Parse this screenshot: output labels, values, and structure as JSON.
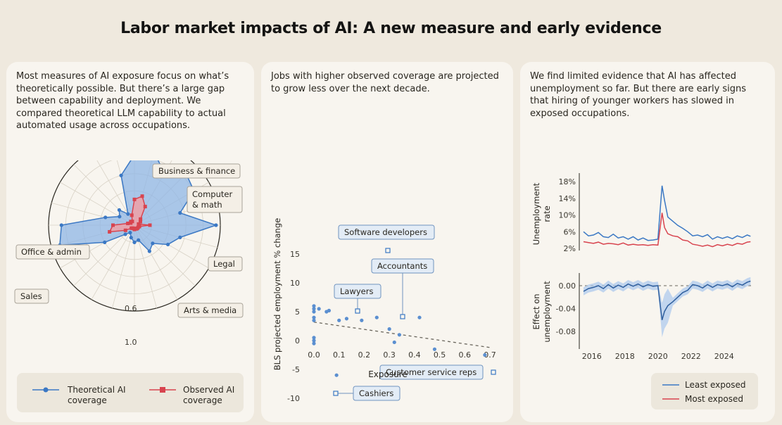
{
  "header": {
    "title": "Labor market impacts of AI: A new measure and early evidence"
  },
  "panel1": {
    "text": "Most measures of AI exposure focus on what’s theoretically possible. But there’s a large gap between capability and deployment. We compared theoretical LLM capability to actual automated usage across occupations.",
    "legend": {
      "theoretical": "Theoretical AI coverage",
      "observed": "Observed AI coverage"
    },
    "legend_lines": {
      "theoretical_1": "Theoretical AI",
      "theoretical_2": "coverage",
      "observed_1": "Observed AI",
      "observed_2": "coverage"
    }
  },
  "panel2": {
    "text": "Jobs with higher observed coverage are projected to grow less over the next decade."
  },
  "panel3": {
    "text": "We find limited evidence that AI has affected unemployment so far. But there are early signs that hiring of younger workers has slowed in exposed occupations.",
    "legend": {
      "least": "Least exposed",
      "most": "Most exposed"
    }
  },
  "colors": {
    "blue": "#3b78c4",
    "blue_fill": "#8fb6e6",
    "red": "#d8444f",
    "red_fill": "#f0a0a6",
    "panel": "#f8f5ef",
    "bg": "#efe9de"
  },
  "chart_data": [
    {
      "type": "radar",
      "title": "",
      "axes_rings": [
        "0.6",
        "1.0"
      ],
      "category_labels": [
        "Business & finance",
        "Computer & math",
        "Legal",
        "Arts & media",
        "Office & admin",
        "Sales"
      ],
      "series": [
        {
          "name": "Theoretical AI coverage",
          "values": [
            0.82,
            0.88,
            0.7,
            0.85,
            0.8,
            0.55,
            0.95,
            0.55,
            0.45,
            0.3,
            0.35,
            0.18,
            0.2,
            0.15,
            0.1,
            0.15,
            0.4,
            0.9,
            0.85,
            0.35,
            0.2,
            0.25,
            0.15,
            0.6
          ]
        },
        {
          "name": "Observed AI coverage",
          "values": [
            0.3,
            0.35,
            0.25,
            0.1,
            0.08,
            0.05,
            0.18,
            0.06,
            0.05,
            0.05,
            0.05,
            0.04,
            0.05,
            0.04,
            0.04,
            0.05,
            0.12,
            0.3,
            0.25,
            0.08,
            0.05,
            0.06,
            0.05,
            0.12
          ]
        }
      ]
    },
    {
      "type": "scatter",
      "title": "",
      "xlabel": "Exposure",
      "ylabel": "BLS projected employment % change",
      "xlim": [
        0,
        0.7
      ],
      "ylim": [
        -10,
        15
      ],
      "xticks": [
        "0.0",
        "0.1",
        "0.2",
        "0.3",
        "0.4",
        "0.5",
        "0.6",
        "0.7"
      ],
      "yticks": [
        "15",
        "10",
        "5",
        "0",
        "-5",
        "-10"
      ],
      "points": [
        [
          0.0,
          6.0
        ],
        [
          0.0,
          5.5
        ],
        [
          0.0,
          5.0
        ],
        [
          0.0,
          4.0
        ],
        [
          0.0,
          3.5
        ],
        [
          0.0,
          0.5
        ],
        [
          0.0,
          0.0
        ],
        [
          0.0,
          -0.5
        ],
        [
          0.02,
          5.5
        ],
        [
          0.05,
          5.0
        ],
        [
          0.06,
          5.2
        ],
        [
          0.1,
          3.5
        ],
        [
          0.13,
          3.8
        ],
        [
          0.19,
          3.5
        ],
        [
          0.25,
          4.0
        ],
        [
          0.3,
          2.0
        ],
        [
          0.34,
          1.0
        ],
        [
          0.32,
          -0.3
        ],
        [
          0.42,
          4.0
        ],
        [
          0.48,
          -1.5
        ],
        [
          0.09,
          -6.0
        ],
        [
          0.68,
          -2.5
        ]
      ],
      "labeled_points": [
        {
          "label": "Software developers",
          "x": 0.3,
          "y": 16.0
        },
        {
          "label": "Accountants",
          "x": 0.36,
          "y": 4.2
        },
        {
          "label": "Lawyers",
          "x": 0.17,
          "y": 4.2
        },
        {
          "label": "Customer service reps",
          "x": 0.7,
          "y": -5.5
        },
        {
          "label": "Cashiers",
          "x": 0.09,
          "y": -9.2
        }
      ],
      "trend": {
        "x": [
          0,
          0.7
        ],
        "y": [
          3.2,
          -1.2
        ]
      }
    },
    {
      "type": "line",
      "title": "",
      "ylabel": "Unemployment rate",
      "yticks": [
        "18%",
        "14%",
        "10%",
        "6%",
        "2%"
      ],
      "ylim": [
        2,
        18
      ],
      "x": [
        2015.5,
        2015.8,
        2016.1,
        2016.4,
        2016.7,
        2017.0,
        2017.3,
        2017.6,
        2017.9,
        2018.2,
        2018.5,
        2018.8,
        2019.1,
        2019.4,
        2019.7,
        2020.0,
        2020.25,
        2020.4,
        2020.6,
        2020.9,
        2021.2,
        2021.5,
        2021.8,
        2022.1,
        2022.4,
        2022.7,
        2023.0,
        2023.3,
        2023.6,
        2023.9,
        2024.2,
        2024.5,
        2024.8,
        2025.1,
        2025.4,
        2025.6
      ],
      "series": [
        {
          "name": "Least exposed",
          "values": [
            6.0,
            5.0,
            5.2,
            5.8,
            4.8,
            4.6,
            5.4,
            4.5,
            4.8,
            4.2,
            4.8,
            4.0,
            4.5,
            3.9,
            4.0,
            4.2,
            17.0,
            13.5,
            9.5,
            8.5,
            7.5,
            6.8,
            6.0,
            5.0,
            5.2,
            4.8,
            5.3,
            4.2,
            4.8,
            4.4,
            4.8,
            4.3,
            5.0,
            4.6,
            5.2,
            4.9
          ]
        },
        {
          "name": "Most exposed",
          "values": [
            3.6,
            3.4,
            3.2,
            3.5,
            3.0,
            3.2,
            3.1,
            2.9,
            3.3,
            2.8,
            3.0,
            2.8,
            2.9,
            2.7,
            2.9,
            2.8,
            10.5,
            7.0,
            5.5,
            5.0,
            4.8,
            4.0,
            3.8,
            3.0,
            2.8,
            2.5,
            2.8,
            2.4,
            2.9,
            2.6,
            3.0,
            2.7,
            3.2,
            3.0,
            3.5,
            3.6
          ]
        }
      ]
    },
    {
      "type": "line",
      "title": "",
      "ylabel": "Effect on unemployment",
      "yticks": [
        "0.00",
        "-0.04",
        "-0.08"
      ],
      "ylim": [
        -0.11,
        0.02
      ],
      "xticks": [
        "2016",
        "2018",
        "2020",
        "2022",
        "2024"
      ],
      "xlim": [
        2015.5,
        2025.8
      ],
      "x": [
        2015.5,
        2015.8,
        2016.1,
        2016.4,
        2016.7,
        2017.0,
        2017.3,
        2017.6,
        2017.9,
        2018.2,
        2018.5,
        2018.8,
        2019.1,
        2019.4,
        2019.7,
        2020.0,
        2020.25,
        2020.4,
        2020.6,
        2020.9,
        2021.2,
        2021.5,
        2021.8,
        2022.1,
        2022.4,
        2022.7,
        2023.0,
        2023.3,
        2023.6,
        2023.9,
        2024.2,
        2024.5,
        2024.8,
        2025.1,
        2025.4,
        2025.6
      ],
      "series": [
        {
          "name": "Effect",
          "values": [
            -0.01,
            -0.005,
            -0.003,
            0.0,
            -0.005,
            0.002,
            -0.004,
            0.001,
            -0.003,
            0.003,
            -0.001,
            0.003,
            -0.002,
            0.002,
            -0.001,
            0.0,
            -0.06,
            -0.045,
            -0.035,
            -0.028,
            -0.02,
            -0.012,
            -0.008,
            0.002,
            0.0,
            -0.004,
            0.002,
            -0.003,
            0.002,
            0.0,
            0.003,
            -0.002,
            0.004,
            0.001,
            0.006,
            0.008
          ]
        }
      ]
    }
  ]
}
